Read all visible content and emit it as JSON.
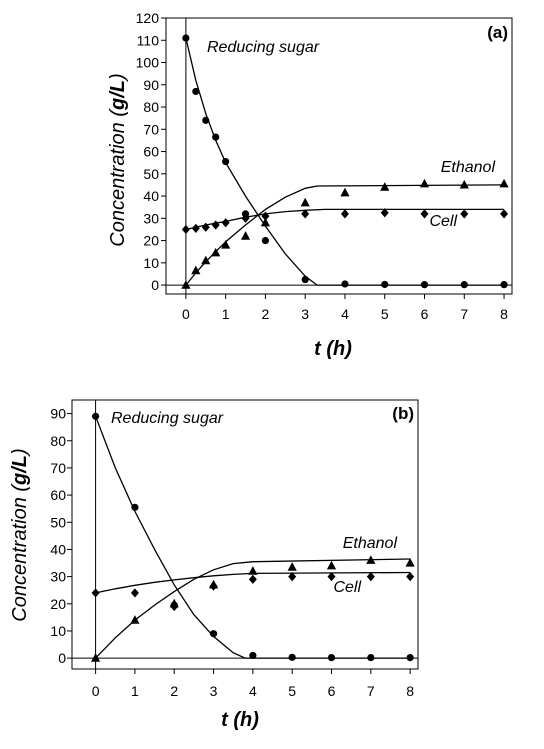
{
  "chart_data": [
    {
      "type": "scatter",
      "panel_label": "(a)",
      "xlabel_var": "t",
      "xlabel_unit": "h",
      "ylabel_text": "Concentration",
      "ylabel_unit": "g/L",
      "xlim": [
        -0.5,
        8.2
      ],
      "ylim": [
        -4,
        120
      ],
      "x_ticks": [
        0,
        1,
        2,
        3,
        4,
        5,
        6,
        7,
        8
      ],
      "y_ticks": [
        0,
        10,
        20,
        30,
        40,
        50,
        60,
        70,
        80,
        90,
        100,
        110,
        120
      ],
      "grid": false,
      "series": [
        {
          "name": "Reducing sugar",
          "marker": "circle",
          "points": [
            [
              0,
              111
            ],
            [
              0.25,
              87
            ],
            [
              0.5,
              74
            ],
            [
              0.75,
              66.5
            ],
            [
              1,
              55.5
            ],
            [
              1.5,
              32
            ],
            [
              2,
              20
            ],
            [
              3,
              2.5
            ],
            [
              4,
              0.5
            ],
            [
              5,
              0.3
            ],
            [
              6,
              0.2
            ],
            [
              7,
              0.2
            ],
            [
              8,
              0.2
            ]
          ],
          "fit": [
            [
              0,
              111
            ],
            [
              0.25,
              92
            ],
            [
              0.5,
              77
            ],
            [
              0.75,
              65
            ],
            [
              1,
              55
            ],
            [
              1.5,
              40
            ],
            [
              2,
              26.5
            ],
            [
              2.5,
              14
            ],
            [
              3,
              4
            ],
            [
              3.3,
              0
            ],
            [
              8,
              0
            ]
          ]
        },
        {
          "name": "Ethanol",
          "marker": "triangle",
          "points": [
            [
              0,
              0
            ],
            [
              0.25,
              6.5
            ],
            [
              0.5,
              11
            ],
            [
              0.75,
              14.5
            ],
            [
              1,
              18
            ],
            [
              1.5,
              22
            ],
            [
              2,
              28
            ],
            [
              3,
              37
            ],
            [
              4,
              41.5
            ],
            [
              5,
              44
            ],
            [
              6,
              45.5
            ],
            [
              7,
              45
            ],
            [
              8,
              45.5
            ]
          ],
          "fit": [
            [
              0,
              0
            ],
            [
              0.25,
              5.5
            ],
            [
              0.5,
              10.5
            ],
            [
              0.75,
              15
            ],
            [
              1,
              19.5
            ],
            [
              1.5,
              27
            ],
            [
              2,
              34
            ],
            [
              2.5,
              39.5
            ],
            [
              3,
              43.5
            ],
            [
              3.3,
              44.5
            ],
            [
              8,
              45
            ]
          ]
        },
        {
          "name": "Cell",
          "marker": "diamond",
          "points": [
            [
              0,
              25
            ],
            [
              0.25,
              25.5
            ],
            [
              0.5,
              26
            ],
            [
              0.75,
              27
            ],
            [
              1,
              28
            ],
            [
              1.5,
              30
            ],
            [
              2,
              31
            ],
            [
              3,
              32
            ],
            [
              4,
              32
            ],
            [
              5,
              32.5
            ],
            [
              6,
              32
            ],
            [
              7,
              32
            ],
            [
              8,
              32
            ]
          ],
          "fit": [
            [
              0,
              25
            ],
            [
              0.25,
              26
            ],
            [
              0.5,
              27
            ],
            [
              0.75,
              27.8
            ],
            [
              1,
              28.6
            ],
            [
              1.5,
              30.5
            ],
            [
              2,
              32
            ],
            [
              2.5,
              33
            ],
            [
              3,
              33.6
            ],
            [
              3.5,
              34
            ],
            [
              8,
              34
            ]
          ]
        }
      ]
    },
    {
      "type": "scatter",
      "panel_label": "(b)",
      "xlabel_var": "t",
      "xlabel_unit": "h",
      "ylabel_text": "Concentration",
      "ylabel_unit": "g/L",
      "xlim": [
        -0.6,
        8.2
      ],
      "ylim": [
        -4,
        95
      ],
      "x_ticks": [
        0,
        1,
        2,
        3,
        4,
        5,
        6,
        7,
        8
      ],
      "y_ticks": [
        0,
        10,
        20,
        30,
        40,
        50,
        60,
        70,
        80,
        90
      ],
      "grid": false,
      "series": [
        {
          "name": "Reducing sugar",
          "marker": "circle",
          "points": [
            [
              0,
              89
            ],
            [
              1,
              55.5
            ],
            [
              2,
              19.5
            ],
            [
              3,
              9
            ],
            [
              4,
              1
            ],
            [
              5,
              0.3
            ],
            [
              6,
              0.2
            ],
            [
              7,
              0.2
            ],
            [
              8,
              0.2
            ]
          ],
          "fit": [
            [
              0,
              89
            ],
            [
              0.5,
              70
            ],
            [
              1,
              54
            ],
            [
              1.5,
              40
            ],
            [
              2,
              27
            ],
            [
              2.5,
              16
            ],
            [
              3,
              8
            ],
            [
              3.5,
              2
            ],
            [
              3.8,
              0
            ],
            [
              8,
              0
            ]
          ]
        },
        {
          "name": "Ethanol",
          "marker": "triangle",
          "points": [
            [
              0,
              0
            ],
            [
              1,
              14
            ],
            [
              2,
              20
            ],
            [
              3,
              27
            ],
            [
              4,
              32
            ],
            [
              5,
              33.5
            ],
            [
              6,
              34
            ],
            [
              7,
              36
            ],
            [
              8,
              35
            ]
          ],
          "fit": [
            [
              0,
              0
            ],
            [
              0.5,
              7.5
            ],
            [
              1,
              14
            ],
            [
              1.5,
              19.5
            ],
            [
              2,
              24.5
            ],
            [
              2.5,
              29
            ],
            [
              3,
              32.5
            ],
            [
              3.5,
              34.8
            ],
            [
              4,
              35.5
            ],
            [
              8,
              36.5
            ]
          ]
        },
        {
          "name": "Cell",
          "marker": "diamond",
          "points": [
            [
              0,
              24
            ],
            [
              1,
              24
            ],
            [
              2,
              19
            ],
            [
              3,
              26.5
            ],
            [
              4,
              29
            ],
            [
              5,
              30
            ],
            [
              6,
              30
            ],
            [
              7,
              30
            ],
            [
              8,
              30
            ]
          ],
          "fit": [
            [
              0,
              24
            ],
            [
              0.5,
              25.5
            ],
            [
              1,
              26.8
            ],
            [
              1.5,
              27.9
            ],
            [
              2,
              28.8
            ],
            [
              2.5,
              29.6
            ],
            [
              3,
              30.3
            ],
            [
              3.5,
              30.8
            ],
            [
              4,
              31.2
            ],
            [
              8,
              31.5
            ]
          ]
        }
      ]
    }
  ]
}
